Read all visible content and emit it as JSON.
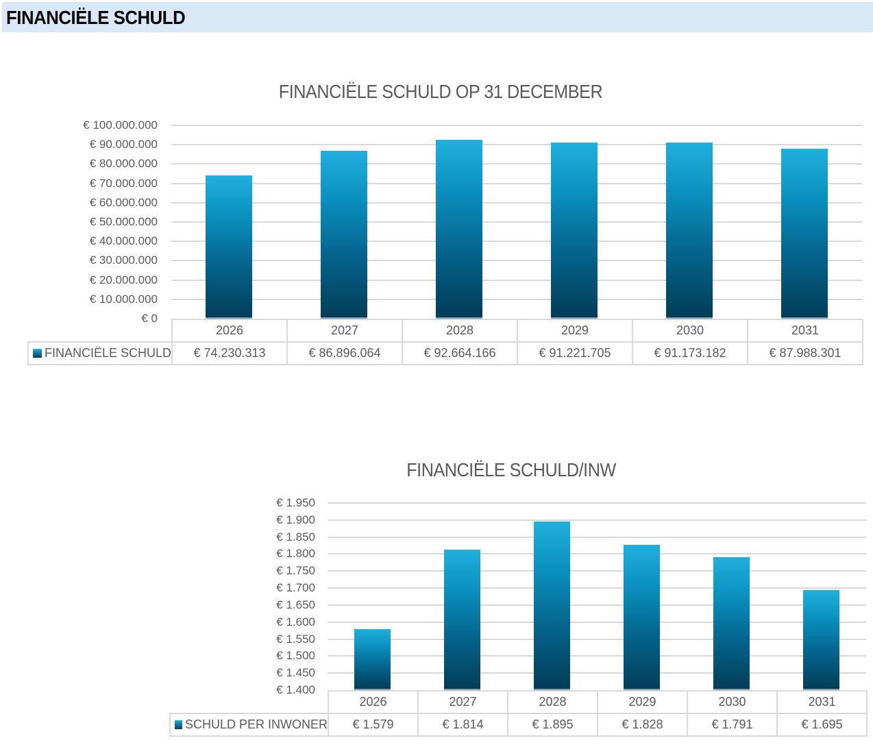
{
  "header": {
    "title": "FINANCIËLE SCHULD"
  },
  "chart1": {
    "title": "FINANCIËLE SCHULD OP 31 DECEMBER",
    "y_ticks": [
      "€ 100.000.000",
      "€ 90.000.000",
      "€ 80.000.000",
      "€ 70.000.000",
      "€ 60.000.000",
      "€ 50.000.000",
      "€ 40.000.000",
      "€ 30.000.000",
      "€ 20.000.000",
      "€ 10.000.000",
      "€ 0"
    ],
    "years": [
      "2026",
      "2027",
      "2028",
      "2029",
      "2030",
      "2031"
    ],
    "series_label": "FINANCIËLE SCHULD",
    "values_display": [
      "€ 74.230.313",
      "€ 86.896.064",
      "€ 92.664.166",
      "€ 91.221.705",
      "€ 91.173.182",
      "€ 87.988.301"
    ]
  },
  "chart2": {
    "title": "FINANCIËLE SCHULD/INW",
    "y_ticks": [
      "€ 1.950",
      "€ 1.900",
      "€ 1.850",
      "€ 1.800",
      "€ 1.750",
      "€ 1.700",
      "€ 1.650",
      "€ 1.600",
      "€ 1.550",
      "€ 1.500",
      "€ 1.450",
      "€ 1.400"
    ],
    "years": [
      "2026",
      "2027",
      "2028",
      "2029",
      "2030",
      "2031"
    ],
    "series_label": "SCHULD PER INWONER",
    "values_display": [
      "€ 1.579",
      "€ 1.814",
      "€ 1.895",
      "€ 1.828",
      "€ 1.791",
      "€ 1.695"
    ]
  },
  "colors": {
    "header_bg": "#d9e8f6",
    "bar_top": "#20b0de",
    "bar_bottom": "#023d58",
    "gridline": "#d9d9d9",
    "text": "#595959"
  },
  "chart_data": [
    {
      "type": "bar",
      "title": "FINANCIËLE SCHULD OP 31 DECEMBER",
      "categories": [
        "2026",
        "2027",
        "2028",
        "2029",
        "2030",
        "2031"
      ],
      "series": [
        {
          "name": "FINANCIËLE SCHULD",
          "values": [
            74230313,
            86896064,
            92664166,
            91221705,
            91173182,
            87988301
          ]
        }
      ],
      "xlabel": "",
      "ylabel": "",
      "ylim": [
        0,
        100000000
      ],
      "y_tick_step": 10000000,
      "grid": true,
      "legend_position": "data-table",
      "data_table": true
    },
    {
      "type": "bar",
      "title": "FINANCIËLE SCHULD/INW",
      "categories": [
        "2026",
        "2027",
        "2028",
        "2029",
        "2030",
        "2031"
      ],
      "series": [
        {
          "name": "SCHULD PER INWONER",
          "values": [
            1579,
            1814,
            1895,
            1828,
            1791,
            1695
          ]
        }
      ],
      "xlabel": "",
      "ylabel": "",
      "ylim": [
        1400,
        1950
      ],
      "y_tick_step": 50,
      "grid": true,
      "legend_position": "data-table",
      "data_table": true
    }
  ]
}
